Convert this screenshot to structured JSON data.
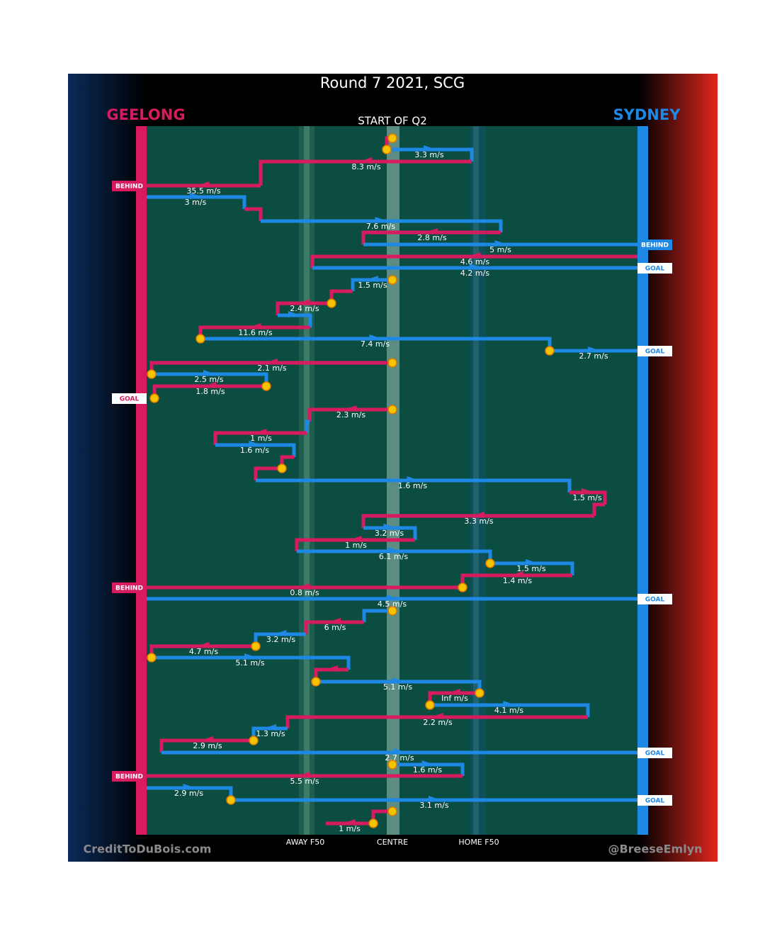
{
  "title": "Round 7 2021, SCG",
  "home_team": "GEELONG",
  "away_team": "SYDNEY",
  "period": "START OF Q2",
  "zones": [
    "AWAY F50",
    "CENTRE",
    "HOME F50"
  ],
  "credit_left": "CreditToDuBois.com",
  "credit_right": "@BreeseEmlyn",
  "kicks": [
    {
      "speed": "3.3 m/s"
    },
    {
      "speed": "8.3 m/s"
    },
    {
      "speed": "35.5 m/s",
      "outcome": "BEHIND"
    },
    {
      "speed": "3 m/s"
    },
    {
      "speed": "7.6 m/s"
    },
    {
      "speed": "2.8 m/s"
    },
    {
      "speed": "5 m/s",
      "outcome": "BEHIND"
    },
    {
      "speed": "4.6 m/s"
    },
    {
      "speed": "4.2 m/s",
      "outcome": "GOAL"
    },
    {
      "speed": "1.5 m/s"
    },
    {
      "speed": "2.4 m/s"
    },
    {
      "speed": "11.6 m/s"
    },
    {
      "speed": "7.4 m/s"
    },
    {
      "speed": "2.7 m/s",
      "outcome": "GOAL"
    },
    {
      "speed": "2.1 m/s"
    },
    {
      "speed": "2.5 m/s"
    },
    {
      "speed": "1.8 m/s",
      "outcome": "GOAL"
    },
    {
      "speed": "2.3 m/s"
    },
    {
      "speed": "1 m/s"
    },
    {
      "speed": "1.6 m/s"
    },
    {
      "speed": "1.6 m/s"
    },
    {
      "speed": "1.5 m/s"
    },
    {
      "speed": "3.3 m/s"
    },
    {
      "speed": "3.2 m/s"
    },
    {
      "speed": "1 m/s"
    },
    {
      "speed": "6.1 m/s"
    },
    {
      "speed": "1.5 m/s"
    },
    {
      "speed": "1.4 m/s"
    },
    {
      "speed": "0.8 m/s",
      "outcome": "BEHIND"
    },
    {
      "speed": "4.5 m/s",
      "outcome": "GOAL"
    },
    {
      "speed": "6 m/s"
    },
    {
      "speed": "3.2 m/s"
    },
    {
      "speed": "4.7 m/s"
    },
    {
      "speed": "5.1 m/s"
    },
    {
      "speed": "5.1 m/s"
    },
    {
      "speed": "Inf m/s"
    },
    {
      "speed": "4.1 m/s"
    },
    {
      "speed": "2.2 m/s"
    },
    {
      "speed": "1.3 m/s"
    },
    {
      "speed": "2.9 m/s"
    },
    {
      "speed": "2.7 m/s",
      "outcome": "GOAL"
    },
    {
      "speed": "1.6 m/s"
    },
    {
      "speed": "5.5 m/s",
      "outcome": "BEHIND"
    },
    {
      "speed": "2.9 m/s"
    },
    {
      "speed": "3.1 m/s",
      "outcome": "GOAL"
    },
    {
      "speed": "1 m/s"
    }
  ]
}
